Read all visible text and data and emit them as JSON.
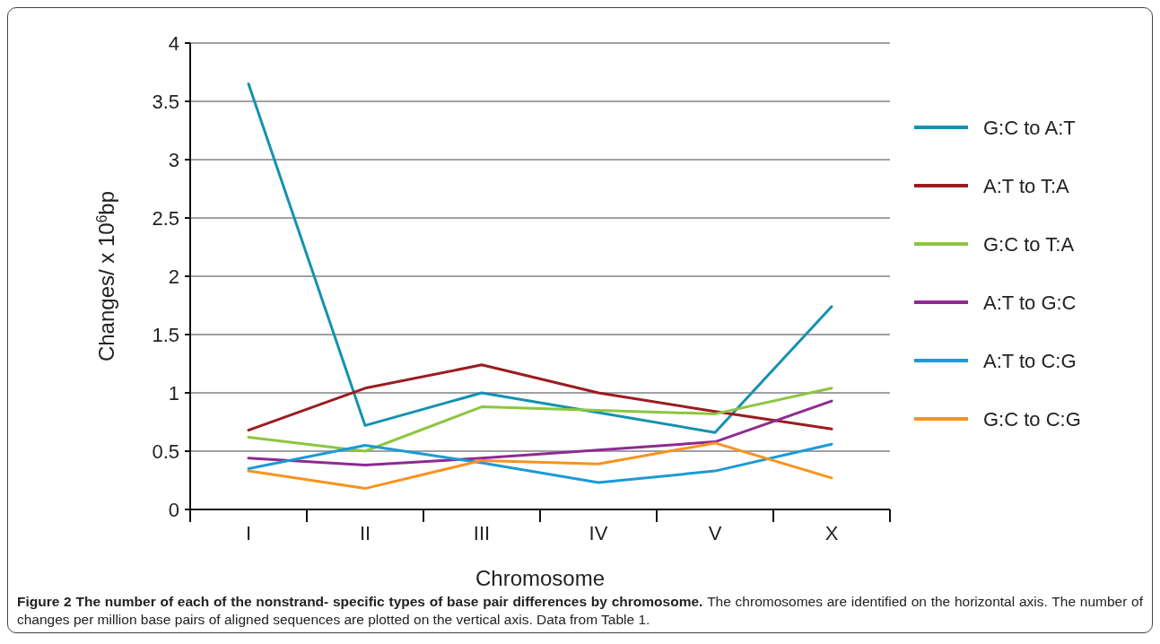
{
  "chart_data": {
    "type": "line",
    "xlabel": "Chromosome",
    "ylabel": "Changes/ x 10$^{6}$bp",
    "categories": [
      "I",
      "II",
      "III",
      "IV",
      "V",
      "X"
    ],
    "series": [
      {
        "name": "G:C to A:T",
        "color": "#1591b0",
        "values": [
          3.65,
          0.72,
          1.0,
          0.83,
          0.66,
          1.74
        ]
      },
      {
        "name": "A:T to T:A",
        "color": "#9b1c20",
        "values": [
          0.68,
          1.04,
          1.24,
          1.0,
          0.84,
          0.69
        ]
      },
      {
        "name": "G:C to T:A",
        "color": "#8cc63f",
        "values": [
          0.62,
          0.5,
          0.88,
          0.85,
          0.82,
          1.04
        ]
      },
      {
        "name": "A:T to G:C",
        "color": "#8e2a92",
        "values": [
          0.44,
          0.38,
          0.44,
          0.51,
          0.58,
          0.93
        ]
      },
      {
        "name": "A:T to C:G",
        "color": "#1b9ad6",
        "values": [
          0.35,
          0.55,
          0.4,
          0.23,
          0.33,
          0.56
        ]
      },
      {
        "name": "G:C to C:G",
        "color": "#f7931e",
        "values": [
          0.33,
          0.18,
          0.42,
          0.39,
          0.57,
          0.27
        ]
      }
    ],
    "ylim": [
      0,
      4
    ],
    "yticks": [
      0,
      0.5,
      1,
      1.5,
      2,
      2.5,
      3,
      3.5,
      4
    ],
    "grid": "y",
    "legend": "right",
    "marker": "none",
    "line_style": "solid",
    "annotations": [
      "Figure 2 The number of each of the nonstrand- specific types of base pair differences by chromosome.",
      "The chromosomes are identified on the horizontal axis. The number of changes per million base pairs of aligned sequences are plotted on the vertical axis. Data from Table 1."
    ]
  }
}
